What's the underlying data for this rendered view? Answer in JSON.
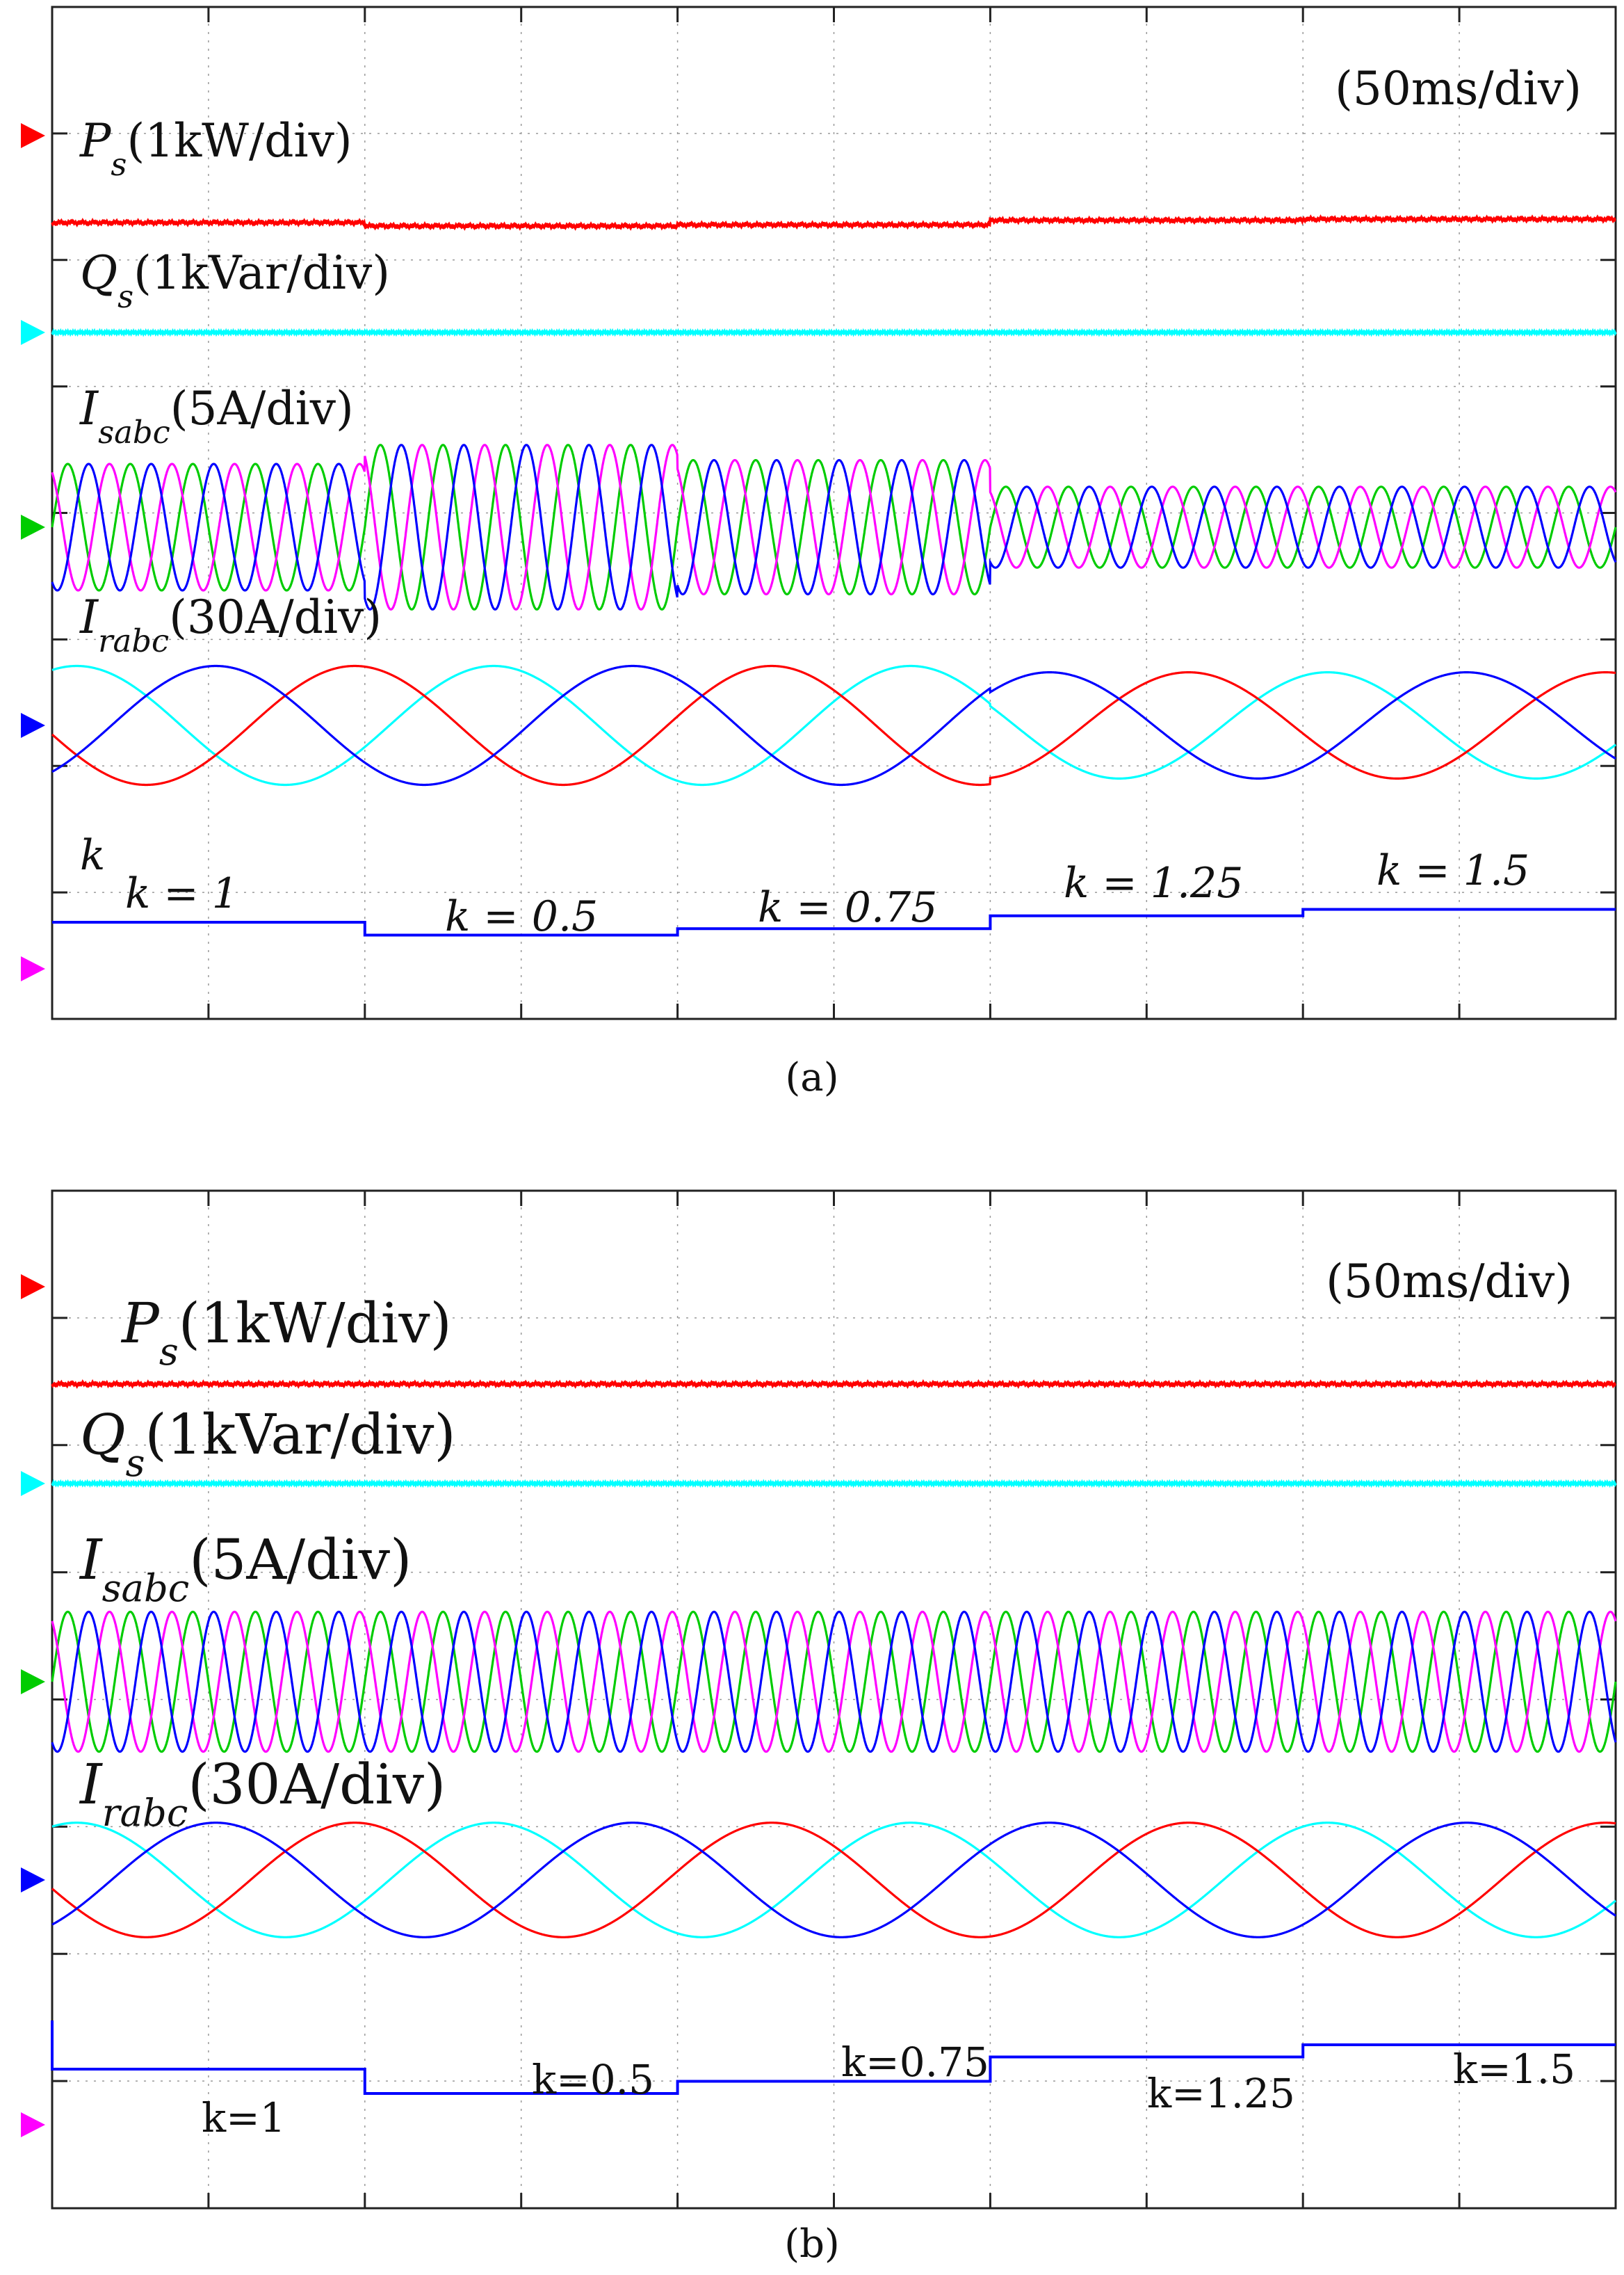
{
  "panels": [
    {
      "caption": "(a)",
      "timebase": "(50ms/div)",
      "labels": {
        "ps": {
          "sym": "P",
          "sub": "s",
          "unit": "(1kW/div)"
        },
        "qs": {
          "sym": "Q",
          "sub": "s",
          "unit": "(1kVar/div)"
        },
        "isabc": {
          "sym": "I",
          "sub": "sabc",
          "unit": "(5A/div)"
        },
        "irabc": {
          "sym": "I",
          "sub": "rabc",
          "unit": "(30A/div)"
        },
        "k": "k"
      },
      "k_labels": [
        "k = 1",
        "k = 0.5",
        "k = 0.75",
        "k = 1.25",
        "k = 1.5"
      ]
    },
    {
      "caption": "(b)",
      "timebase": "(50ms/div)",
      "labels": {
        "ps": {
          "sym": "P",
          "sub": "s",
          "unit": "(1kW/div)"
        },
        "qs": {
          "sym": "Q",
          "sub": "s",
          "unit": "(1kVar/div)"
        },
        "isabc": {
          "sym": "I",
          "sub": "sabc",
          "unit": "(5A/div)"
        },
        "irabc": {
          "sym": "I",
          "sub": "rabc",
          "unit": "(30A/div)"
        }
      },
      "k_labels": [
        "k=1",
        "k=0.5",
        "k=0.75",
        "k=1.25",
        "k=1.5"
      ]
    }
  ],
  "chart_data": [
    {
      "type": "line",
      "title": "(a)",
      "x_units": "div",
      "x_range": [
        0,
        10
      ],
      "y_range": [
        0,
        8
      ],
      "timebase": "50ms/div",
      "grid": true,
      "channel_colors": {
        "ps": "#ff0000",
        "qs": "#00ffff",
        "isabc": "#00cc00",
        "irabc": "#0000ff",
        "k": "#ff00ff"
      },
      "k_steps": [
        {
          "t_start": 0,
          "t_end": 2,
          "k": 1
        },
        {
          "t_start": 2,
          "t_end": 4,
          "k": 0.5
        },
        {
          "t_start": 4,
          "t_end": 6,
          "k": 0.75
        },
        {
          "t_start": 6,
          "t_end": 8,
          "k": 1.25
        },
        {
          "t_start": 8,
          "t_end": 10,
          "k": 1.5
        }
      ],
      "series": [
        {
          "name": "Ps",
          "unit": "1kW/div",
          "color": "#ff0000",
          "level_div": [
            0.95,
            1.1,
            1.05,
            0.85,
            0.8
          ]
        },
        {
          "name": "Qs",
          "unit": "1kVar/div",
          "color": "#00ffff",
          "level_div": [
            0,
            0,
            0,
            0,
            0
          ]
        },
        {
          "name": "Isabc",
          "unit": "5A/div",
          "phase_colors": [
            "#00cc00",
            "#ff00ff",
            "#0000ff"
          ],
          "amplitude_div": [
            0.5,
            0.65,
            0.53,
            0.32,
            0.32
          ],
          "cycles_per_div": 2.5
        },
        {
          "name": "Irabc",
          "unit": "30A/div",
          "phase_colors": [
            "#00ffff",
            "#ff0000",
            "#0000ff"
          ],
          "amplitude_div": [
            0.47,
            0.47,
            0.47,
            0.42,
            0.42
          ],
          "cycles_per_div": 0.375
        },
        {
          "name": "k",
          "color": "#0000ff",
          "values": [
            1,
            0.5,
            0.75,
            1.25,
            1.5
          ]
        }
      ]
    },
    {
      "type": "line",
      "title": "(b)",
      "x_units": "div",
      "x_range": [
        0,
        10
      ],
      "y_range": [
        0,
        8
      ],
      "timebase": "50ms/div",
      "grid": true,
      "channel_colors": {
        "ps": "#ff0000",
        "qs": "#00ffff",
        "isabc": "#00cc00",
        "irabc": "#0000ff",
        "k": "#ff00ff"
      },
      "k_steps": [
        {
          "t_start": 0,
          "t_end": 2,
          "k": 1
        },
        {
          "t_start": 2,
          "t_end": 4,
          "k": 0.5
        },
        {
          "t_start": 4,
          "t_end": 6,
          "k": 0.75
        },
        {
          "t_start": 6,
          "t_end": 8,
          "k": 1.25
        },
        {
          "t_start": 8,
          "t_end": 10,
          "k": 1.5
        }
      ],
      "series": [
        {
          "name": "Ps",
          "unit": "1kW/div",
          "color": "#ff0000",
          "level_div": [
            0.6,
            0.6,
            0.6,
            0.6,
            0.6
          ]
        },
        {
          "name": "Qs",
          "unit": "1kVar/div",
          "color": "#00ffff",
          "level_div": [
            0,
            0,
            0,
            0,
            0
          ]
        },
        {
          "name": "Isabc",
          "unit": "5A/div",
          "phase_colors": [
            "#00cc00",
            "#ff00ff",
            "#0000ff"
          ],
          "amplitude_div": [
            0.55,
            0.55,
            0.55,
            0.55,
            0.55
          ],
          "cycles_per_div": 2.5
        },
        {
          "name": "Irabc",
          "unit": "30A/div",
          "phase_colors": [
            "#00ffff",
            "#ff0000",
            "#0000ff"
          ],
          "amplitude_div": [
            0.45,
            0.45,
            0.45,
            0.45,
            0.45
          ],
          "cycles_per_div": 0.375
        },
        {
          "name": "k",
          "color": "#0000ff",
          "values": [
            1,
            0.5,
            0.75,
            1.25,
            1.5
          ]
        }
      ]
    }
  ]
}
